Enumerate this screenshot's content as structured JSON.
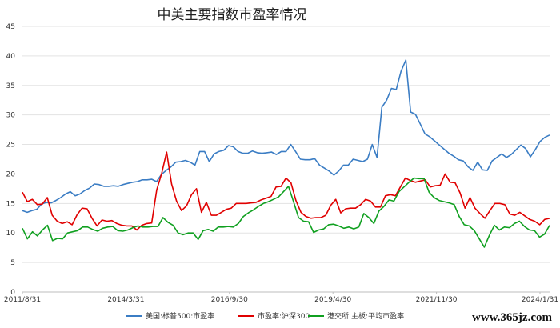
{
  "chart_data": {
    "type": "line",
    "title": "中美主要指数市盈率情况",
    "ylim": [
      0,
      45
    ],
    "y_ticks": [
      0,
      5,
      10,
      15,
      20,
      25,
      30,
      35,
      40,
      45
    ],
    "x_ticks": [
      "2011/8/31",
      "2014/3/31",
      "2016/9/30",
      "2019/4/30",
      "2021/11/30",
      "2024/1/31"
    ],
    "grid": true,
    "legend_position": "bottom",
    "series": [
      {
        "name": "美国:标普500:市盈率",
        "color": "#3b7dc4",
        "values": [
          13.8,
          13.5,
          13.8,
          14.0,
          14.9,
          15.2,
          15.1,
          15.5,
          16.0,
          16.6,
          17.0,
          16.3,
          16.6,
          17.2,
          17.6,
          18.3,
          18.2,
          17.9,
          17.9,
          18.0,
          17.9,
          18.2,
          18.4,
          18.6,
          18.7,
          19.0,
          19.0,
          19.1,
          18.7,
          19.9,
          20.6,
          21.2,
          22.0,
          22.1,
          22.3,
          22.0,
          21.5,
          23.8,
          23.8,
          22.1,
          23.4,
          23.8,
          24.0,
          24.8,
          24.6,
          23.8,
          23.5,
          23.5,
          23.9,
          23.6,
          23.5,
          23.6,
          23.7,
          23.3,
          23.8,
          23.8,
          25.0,
          23.8,
          22.5,
          22.4,
          22.4,
          22.6,
          21.5,
          21.0,
          20.5,
          19.8,
          20.5,
          21.5,
          21.5,
          22.5,
          22.3,
          22.1,
          22.5,
          25.0,
          22.8,
          31.3,
          32.5,
          34.5,
          34.3,
          37.4,
          39.3,
          30.5,
          30.1,
          28.5,
          26.8,
          26.3,
          25.6,
          24.9,
          24.2,
          23.5,
          23.0,
          22.4,
          22.2,
          21.2,
          20.6,
          22.0,
          20.7,
          20.6,
          22.2,
          22.8,
          23.4,
          22.8,
          23.3,
          24.1,
          24.9,
          24.3,
          22.9,
          24.1,
          25.5,
          26.2,
          26.6
        ]
      },
      {
        "name": "市盈率:沪深300",
        "color": "#e00000",
        "values": [
          16.9,
          15.3,
          15.7,
          14.8,
          14.9,
          16.0,
          13.0,
          12.0,
          11.6,
          11.9,
          11.4,
          13.1,
          14.2,
          14.1,
          12.5,
          11.2,
          12.2,
          12.0,
          12.1,
          11.6,
          11.3,
          11.2,
          11.2,
          10.5,
          11.3,
          11.6,
          11.7,
          17.3,
          20.1,
          23.7,
          18.3,
          15.4,
          13.8,
          14.6,
          16.5,
          17.5,
          13.5,
          15.2,
          13.0,
          13.0,
          13.5,
          14.0,
          14.2,
          15.0,
          15.0,
          15.0,
          15.1,
          15.2,
          15.6,
          15.9,
          16.2,
          17.8,
          17.9,
          19.3,
          18.5,
          15.5,
          13.5,
          12.8,
          12.5,
          12.6,
          12.6,
          13.0,
          14.7,
          15.7,
          13.4,
          14.1,
          14.2,
          14.2,
          14.8,
          15.7,
          15.4,
          14.4,
          14.4,
          16.3,
          16.5,
          16.3,
          17.8,
          19.3,
          18.9,
          18.6,
          18.8,
          19.0,
          17.8,
          18.0,
          18.1,
          20.0,
          18.6,
          18.5,
          16.8,
          14.2,
          16.0,
          14.2,
          13.3,
          12.5,
          13.8,
          15.0,
          15.0,
          14.8,
          13.2,
          13.0,
          13.5,
          12.9,
          12.3,
          12.0,
          11.4,
          12.3,
          12.5
        ]
      },
      {
        "name": "港交所:主板:平均市盈率",
        "color": "#10a020",
        "values": [
          10.8,
          9.0,
          10.2,
          9.5,
          10.5,
          11.3,
          8.7,
          9.1,
          9.0,
          10.0,
          10.2,
          10.4,
          11.0,
          11.0,
          10.6,
          10.3,
          10.8,
          11.0,
          11.1,
          10.4,
          10.3,
          10.5,
          10.9,
          11.2,
          11.0,
          11.0,
          11.1,
          11.1,
          12.6,
          11.8,
          11.3,
          10.0,
          9.7,
          10.0,
          10.0,
          8.9,
          10.4,
          10.6,
          10.3,
          11.0,
          11.0,
          11.1,
          11.0,
          11.6,
          12.8,
          13.4,
          13.9,
          14.5,
          15.0,
          15.3,
          15.7,
          16.1,
          17.0,
          17.9,
          15.3,
          12.6,
          12.0,
          11.9,
          10.1,
          10.5,
          10.7,
          11.4,
          11.5,
          11.2,
          10.8,
          11.0,
          10.7,
          11.0,
          13.3,
          12.6,
          11.6,
          13.7,
          14.5,
          15.6,
          15.4,
          17.0,
          17.8,
          18.6,
          19.3,
          19.2,
          19.2,
          16.9,
          16.0,
          15.5,
          15.3,
          15.1,
          14.8,
          12.8,
          11.4,
          11.2,
          10.4,
          9.0,
          7.6,
          9.6,
          11.3,
          10.5,
          11.0,
          10.9,
          11.6,
          12.0,
          11.1,
          10.5,
          10.4,
          9.3,
          9.8,
          11.3
        ]
      }
    ]
  },
  "watermark": "www.365jz.com"
}
